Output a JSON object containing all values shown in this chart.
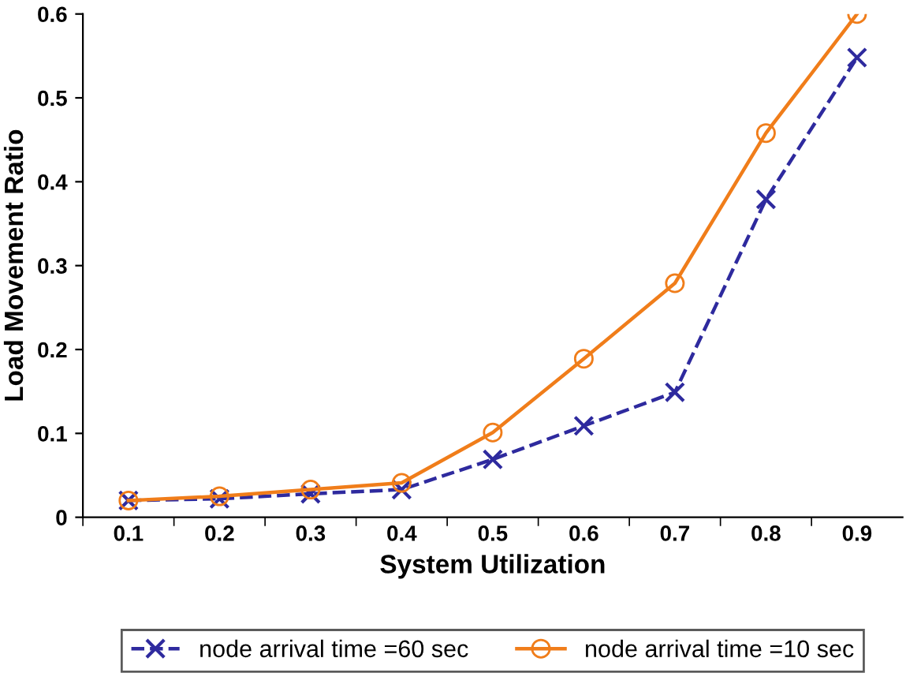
{
  "chart_data": {
    "type": "line",
    "xlabel": "System Utilization",
    "ylabel": "Load Movement Ratio",
    "categories": [
      "0.1",
      "0.2",
      "0.3",
      "0.4",
      "0.5",
      "0.6",
      "0.7",
      "0.8",
      "0.9"
    ],
    "series": [
      {
        "name": "node arrival time =60 sec",
        "color": "#2e2a9e",
        "marker": "cross",
        "line_style": "dashed",
        "values": [
          0.02,
          0.022,
          0.028,
          0.033,
          0.069,
          0.109,
          0.149,
          0.379,
          0.548
        ]
      },
      {
        "name": "node arrival time =10 sec",
        "color": "#f07d1a",
        "marker": "circle",
        "line_style": "solid",
        "values": [
          0.02,
          0.025,
          0.033,
          0.041,
          0.101,
          0.189,
          0.279,
          0.458,
          0.6
        ]
      }
    ],
    "ylim": [
      0,
      0.6
    ],
    "yticks": [
      {
        "value": 0,
        "label": "0"
      },
      0.1,
      0.2,
      0.3,
      0.4,
      0.5,
      0.6
    ],
    "grid": false,
    "legend": "bottom"
  }
}
